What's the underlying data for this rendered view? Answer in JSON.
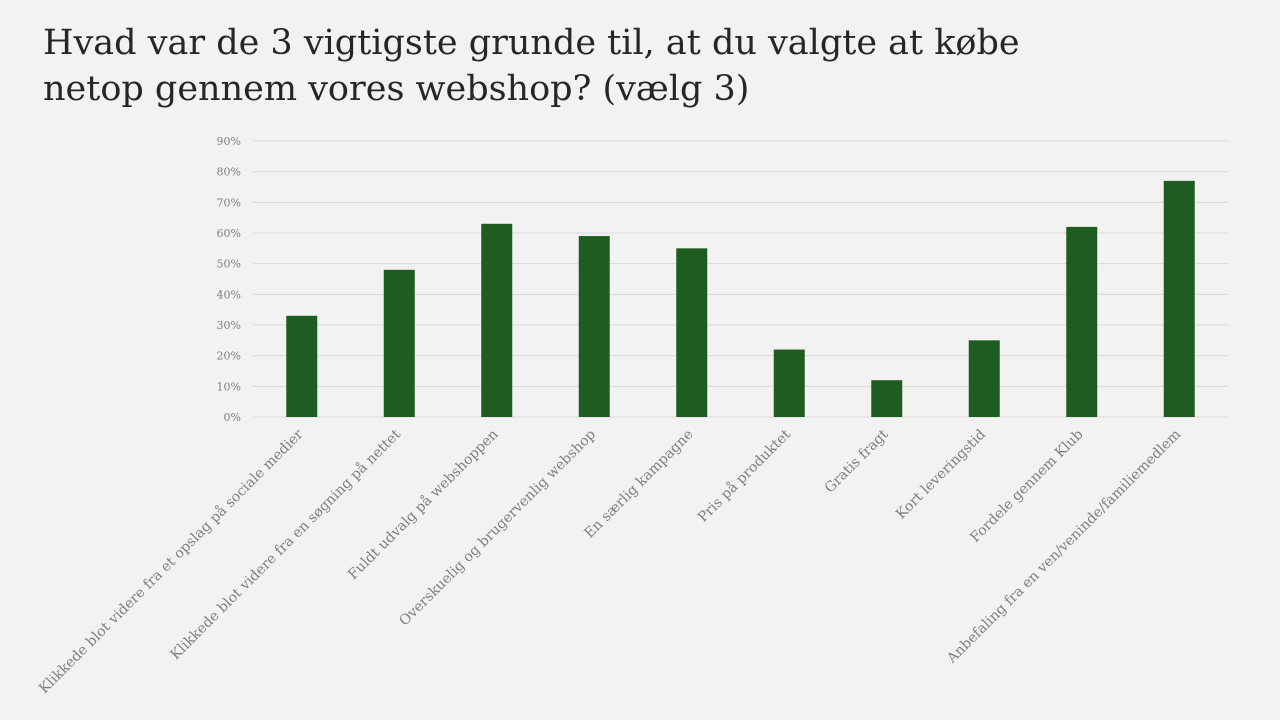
{
  "slide": {
    "title": "Hvad var de 3 vigtigste grunde til, at du valgte at købe netop gennem vores webshop? (vælg 3)"
  },
  "chart_data": {
    "type": "bar",
    "categories": [
      "Klikkede blot videre fra et opslag på sociale medier",
      "Klikkede blot videre fra en søgning på nettet",
      "Fuldt udvalg på webshoppen",
      "Overskuelig og brugervenlig webshop",
      "En særlig kampagne",
      "Pris på produktet",
      "Gratis fragt",
      "Kort leveringstid",
      "Fordele gennem Klub",
      "Anbefaling fra en ven/veninde/familiemedlem"
    ],
    "values": [
      33,
      48,
      63,
      59,
      55,
      22,
      12,
      25,
      62,
      77
    ],
    "ylim": [
      0,
      90
    ],
    "yticks": [
      0,
      10,
      20,
      30,
      40,
      50,
      60,
      70,
      80,
      90
    ],
    "ytick_suffix": "%",
    "grid": true,
    "legend": "none",
    "bar_color": "#1e5c20"
  }
}
